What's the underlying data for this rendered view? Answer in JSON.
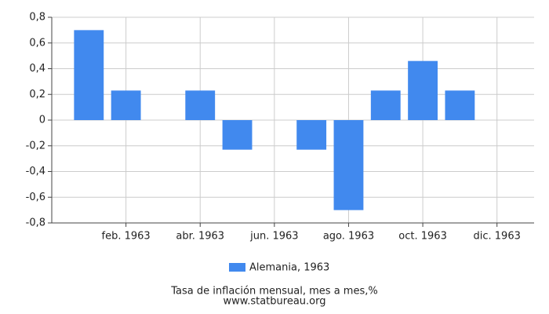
{
  "chart_data": {
    "type": "bar",
    "categories": [
      null,
      "feb. 1963",
      null,
      "abr. 1963",
      null,
      "jun. 1963",
      null,
      "ago. 1963",
      null,
      "oct. 1963",
      null,
      "dic. 1963"
    ],
    "series": [
      {
        "name": "Alemania, 1963",
        "color": "#4189ee",
        "values": [
          0.7,
          0.23,
          0,
          0.23,
          -0.23,
          0,
          -0.23,
          -0.7,
          0.23,
          0.46,
          0.23,
          0
        ]
      }
    ],
    "ylim": [
      -0.8,
      0.8
    ],
    "yticks": [
      {
        "value": -0.8,
        "label": "-0,8"
      },
      {
        "value": -0.6,
        "label": "-0,6"
      },
      {
        "value": -0.4,
        "label": "-0,4"
      },
      {
        "value": -0.2,
        "label": "-0,2"
      },
      0,
      {
        "value": 0.2,
        "label": "0,2"
      },
      {
        "value": 0.4,
        "label": "0,4"
      },
      {
        "value": 0.6,
        "label": "0,6"
      },
      {
        "value": 0.8,
        "label": "0,8"
      }
    ],
    "grid": true,
    "caption": "Tasa de inflación mensual, mes a mes,%",
    "source": "www.statbureau.org"
  }
}
